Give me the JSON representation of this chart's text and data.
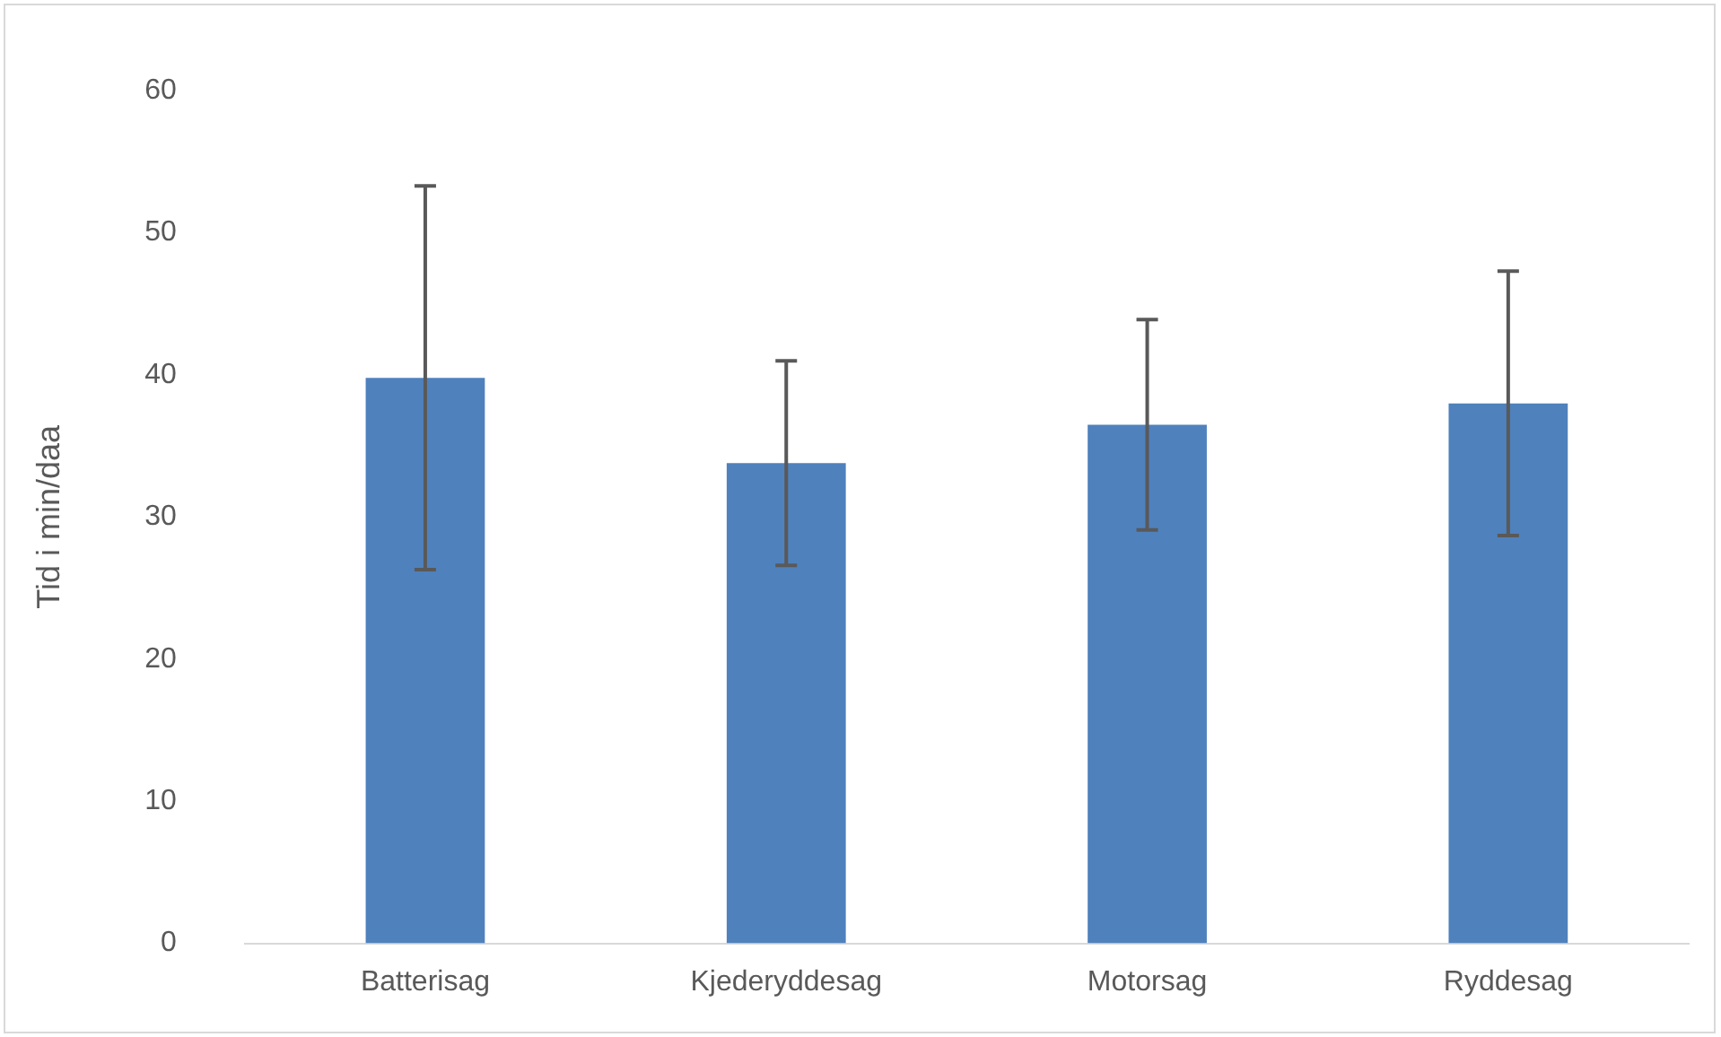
{
  "chart_data": {
    "type": "bar",
    "ylabel": "Tid i min/daa",
    "categories": [
      "Batterisag",
      "Kjederyddesag",
      "Motorsag",
      "Ryddesag"
    ],
    "values": [
      39.8,
      33.8,
      36.5,
      38.0
    ],
    "errors": [
      13.5,
      7.2,
      7.4,
      9.3
    ],
    "color": "#4f81bd",
    "ylim": [
      0,
      60
    ],
    "yticks": [
      0,
      10,
      20,
      30,
      40,
      50,
      60
    ],
    "grid": false,
    "legend": false
  }
}
